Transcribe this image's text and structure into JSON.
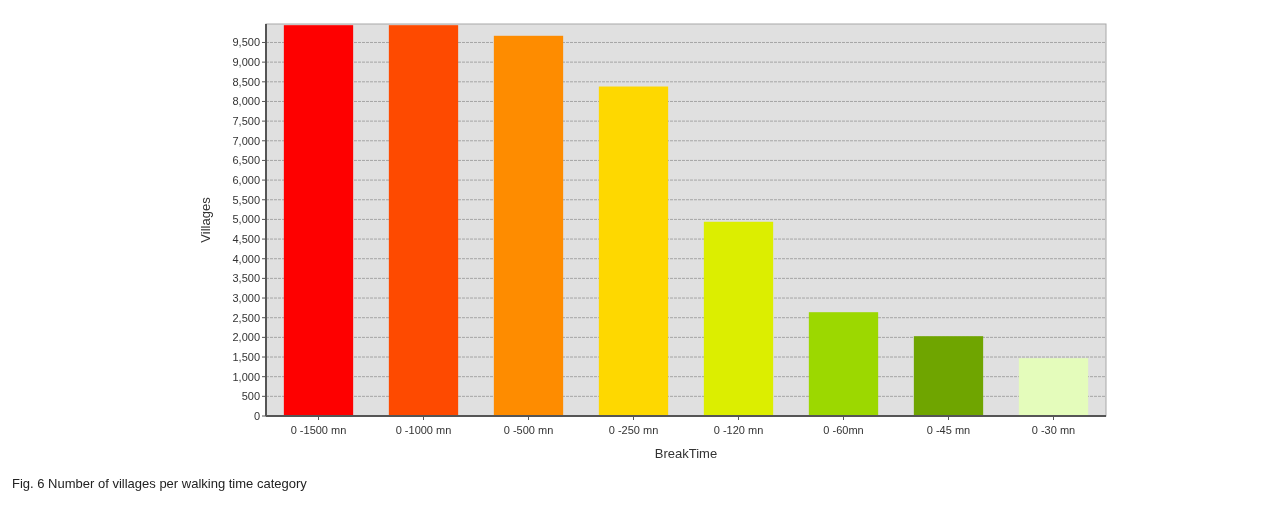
{
  "chart_data": {
    "type": "bar",
    "xlabel": "BreakTime",
    "ylabel": "Villages",
    "categories": [
      "0 -1500 mn",
      "0 -1000 mn",
      "0 -500 mn",
      "0 -250 mn",
      "0 -120 mn",
      "0 -60mn",
      "0 -45 mn",
      "0 -30 mn"
    ],
    "values": [
      9940,
      9940,
      9670,
      8380,
      4940,
      2640,
      2030,
      1470
    ],
    "colors": [
      "#fe0000",
      "#fe4a00",
      "#fe8c00",
      "#fed800",
      "#dcee00",
      "#9cd800",
      "#6fa500",
      "#e4fcbb"
    ],
    "ylim": [
      0,
      9970
    ],
    "yticks": [
      0,
      500,
      {
        "value": 1000,
        "label": "1,000"
      },
      {
        "value": 1500,
        "label": "1,500"
      },
      {
        "value": 2000,
        "label": "2,000"
      },
      {
        "value": 2500,
        "label": "2,500"
      },
      {
        "value": 3000,
        "label": "3,000"
      },
      {
        "value": 3500,
        "label": "3,500"
      },
      {
        "value": 4000,
        "label": "4,000"
      },
      {
        "value": 4500,
        "label": "4,500"
      },
      {
        "value": 5000,
        "label": "5,000"
      },
      {
        "value": 5500,
        "label": "5,500"
      },
      {
        "value": 6000,
        "label": "6,000"
      },
      {
        "value": 6500,
        "label": "6,500"
      },
      {
        "value": 7000,
        "label": "7,000"
      },
      {
        "value": 7500,
        "label": "7,500"
      },
      {
        "value": 8000,
        "label": "8,000"
      },
      {
        "value": 8500,
        "label": "8,500"
      },
      {
        "value": 9000,
        "label": "9,000"
      },
      {
        "value": 9500,
        "label": "9,500"
      }
    ],
    "grid": "y",
    "annotations": [
      "Fig. 6 Number of villages per walking time category"
    ]
  }
}
